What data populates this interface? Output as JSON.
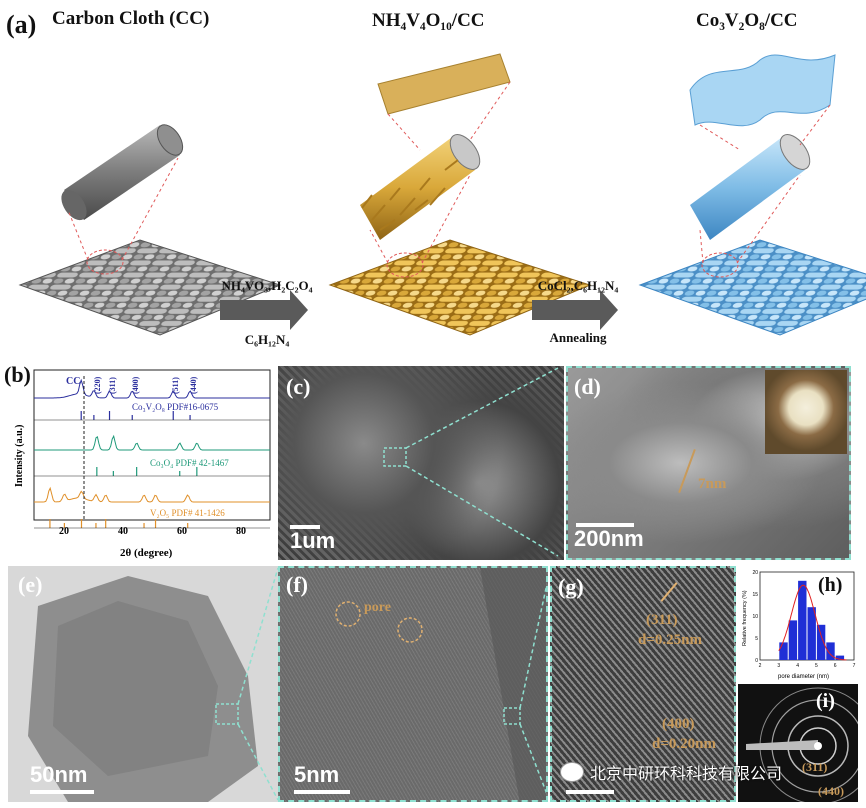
{
  "panel_a": {
    "label": "(a)",
    "titles": [
      "Carbon Cloth (CC)",
      "NH₄V₄O₁₀/CC",
      "Co₃V₂O₈/CC"
    ],
    "arrow1_top": "NH₄VO₃,H₂C₂O₄",
    "arrow1_bottom": "C₆H₁₂N₄",
    "arrow2_top": "CoCl₂,C₆H₁₂N₄",
    "arrow2_bottom": "Annealing",
    "colors": {
      "cc": "#9a9a9a",
      "nh4": "#d9a83a",
      "co3": "#7fbce6"
    }
  },
  "panel_b": {
    "label": "(b)",
    "ylabel": "Intensity (a.u.)",
    "xlabel": "2θ (degree)",
    "cc_label": "CC",
    "peak_labels": [
      "(220)",
      "(311)",
      "(400)",
      "(511)",
      "(440)"
    ],
    "refs": [
      {
        "text": "Co₃V₂O₈ PDF#16-0675",
        "color": "#2b2f9e"
      },
      {
        "text": "Co₃O₄  PDF# 42-1467",
        "color": "#1f9a7a"
      },
      {
        "text": "V₂O₅ PDF# 41-1426",
        "color": "#e0902a"
      }
    ],
    "xticks": [
      "20",
      "40",
      "60",
      "80"
    ]
  },
  "chart_data": [
    {
      "type": "line",
      "title": "",
      "xlabel": "2θ (degree)",
      "ylabel": "Intensity (a.u.)",
      "xlim": [
        10,
        90
      ],
      "series": [
        {
          "name": "Co₃V₂O₈",
          "color": "#2b2f9e",
          "peaks_2theta": [
            26.0,
            30.3,
            35.6,
            43.3,
            57.2,
            62.9
          ]
        },
        {
          "name": "Co₃O₄",
          "color": "#1f9a7a",
          "peaks_2theta": [
            31.3,
            36.9,
            44.8,
            59.4,
            65.2
          ]
        },
        {
          "name": "V₂O₅",
          "color": "#e0902a",
          "peaks_2theta": [
            15.4,
            20.3,
            26.1,
            31.0,
            34.3,
            47.3,
            51.2,
            62.1
          ]
        }
      ]
    },
    {
      "type": "bar",
      "title": "",
      "xlabel": "pore diameter (nm)",
      "ylabel": "Relative frequency (%)",
      "ylim": [
        0,
        20
      ],
      "xlim": [
        2,
        7
      ],
      "categories": [
        "3.25",
        "3.75",
        "4.25",
        "4.75",
        "5.25",
        "5.75",
        "6.25"
      ],
      "values": [
        4,
        9,
        18,
        12,
        8,
        4,
        1
      ],
      "yticks": [
        "0",
        "5",
        "10",
        "15",
        "20"
      ],
      "xticks": [
        "2",
        "3",
        "4",
        "5",
        "6",
        "7"
      ]
    }
  ],
  "panel_c": {
    "label": "(c)",
    "scale": "1um"
  },
  "panel_d": {
    "label": "(d)",
    "scale": "200nm",
    "annotation": "7nm"
  },
  "panel_e": {
    "label": "(e)",
    "scale": "50nm"
  },
  "panel_f": {
    "label": "(f)",
    "scale": "5nm",
    "annotation": "pore"
  },
  "panel_g": {
    "label": "(g)",
    "ann1a": "(311)",
    "ann1b": "d=0.25nm",
    "ann2a": "(400)",
    "ann2b": "d=0.20nm"
  },
  "panel_h": {
    "label": "(h)"
  },
  "panel_i": {
    "label": "(i)",
    "ring1": "(311)",
    "ring2": "(440)"
  },
  "watermark": "北京中研环科科技有限公司"
}
